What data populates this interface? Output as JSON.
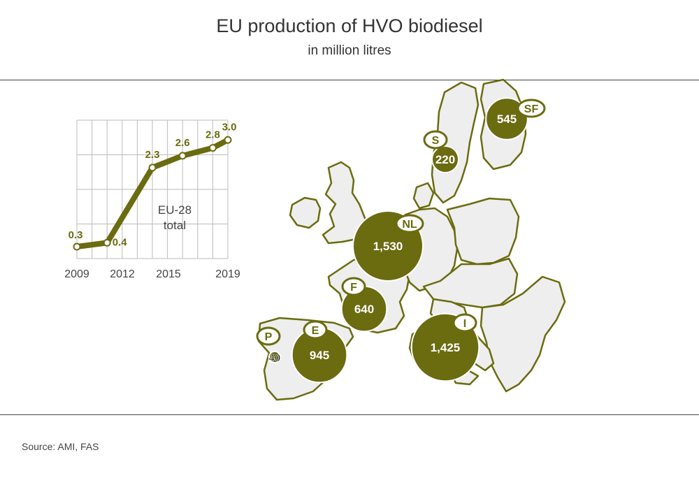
{
  "title": "EU production of HVO biodiesel",
  "subtitle": "in million litres",
  "source": "Source: AMI, FAS",
  "colors": {
    "accent": "#6b6b10",
    "land": "#eeeeee",
    "grid": "#bbbbbb"
  },
  "inset_chart": {
    "label_line1": "EU-28",
    "label_line2": "total",
    "x_tick_labels": [
      "2009",
      "2012",
      "2015",
      "2019"
    ]
  },
  "chart_data": {
    "type": "line",
    "title": "",
    "xlabel": "",
    "ylabel": "",
    "x": [
      2009,
      2011,
      2014,
      2016,
      2018,
      2019
    ],
    "series": [
      {
        "name": "EU-28 total",
        "values": [
          0.3,
          0.4,
          2.3,
          2.6,
          2.8,
          3.0
        ]
      }
    ],
    "value_labels": [
      "0.3",
      "0.4",
      "2.3",
      "2.6",
      "2.8",
      "3.0"
    ],
    "xlim": [
      2009,
      2019
    ],
    "ylim": [
      0,
      3.5
    ],
    "grid": true
  },
  "map": {
    "countries": [
      {
        "code": "NL",
        "value": 1530,
        "value_label": "1,530"
      },
      {
        "code": "I",
        "value": 1425,
        "value_label": "1,425"
      },
      {
        "code": "E",
        "value": 945,
        "value_label": "945"
      },
      {
        "code": "F",
        "value": 640,
        "value_label": "640"
      },
      {
        "code": "SF",
        "value": 545,
        "value_label": "545"
      },
      {
        "code": "S",
        "value": 220,
        "value_label": "220"
      },
      {
        "code": "P",
        "value": 40,
        "value_label": "40"
      }
    ]
  }
}
